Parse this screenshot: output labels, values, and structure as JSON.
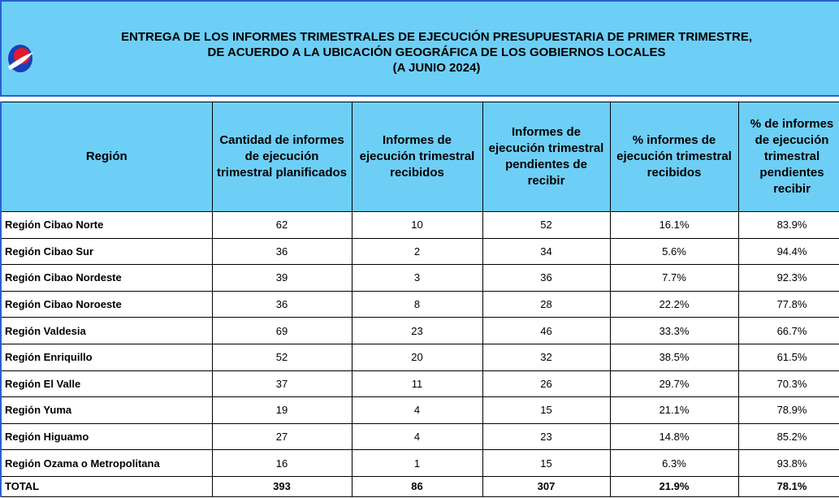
{
  "header": {
    "title_lines": [
      "ENTREGA DE LOS INFORMES TRIMESTRALES DE EJECUCIÓN PRESUPUESTARIA DE PRIMER TRIMESTRE,",
      "DE ACUERDO A LA UBICACIÓN GEOGRÁFICA DE LOS GOBIERNOS LOCALES",
      "(A JUNIO 2024)"
    ]
  },
  "table": {
    "columns": [
      "Región",
      "Cantidad de informes de ejecución trimestral planificados",
      "Informes de ejecución trimestral recibidos",
      "Informes de ejecución trimestral pendientes de recibir",
      "% informes de ejecución trimestral recibidos",
      "% de informes de ejecución trimestral pendientes recibir"
    ],
    "rows": [
      [
        "Región Cibao Norte",
        62,
        10,
        52,
        "16.1%",
        "83.9%"
      ],
      [
        "Región Cibao Sur",
        36,
        2,
        34,
        "5.6%",
        "94.4%"
      ],
      [
        "Región Cibao Nordeste",
        39,
        3,
        36,
        "7.7%",
        "92.3%"
      ],
      [
        "Región Cibao Noroeste",
        36,
        8,
        28,
        "22.2%",
        "77.8%"
      ],
      [
        "Región Valdesia",
        69,
        23,
        46,
        "33.3%",
        "66.7%"
      ],
      [
        "Región Enriquillo",
        52,
        20,
        32,
        "38.5%",
        "61.5%"
      ],
      [
        "Región El Valle",
        37,
        11,
        26,
        "29.7%",
        "70.3%"
      ],
      [
        "Región Yuma",
        19,
        4,
        15,
        "21.1%",
        "78.9%"
      ],
      [
        "Región Higuamo",
        27,
        4,
        23,
        "14.8%",
        "85.2%"
      ],
      [
        "Región Ozama o Metropolitana",
        16,
        1,
        15,
        "6.3%",
        "93.8%"
      ]
    ],
    "total": [
      "TOTAL",
      393,
      86,
      307,
      "21.9%",
      "78.1%"
    ]
  }
}
